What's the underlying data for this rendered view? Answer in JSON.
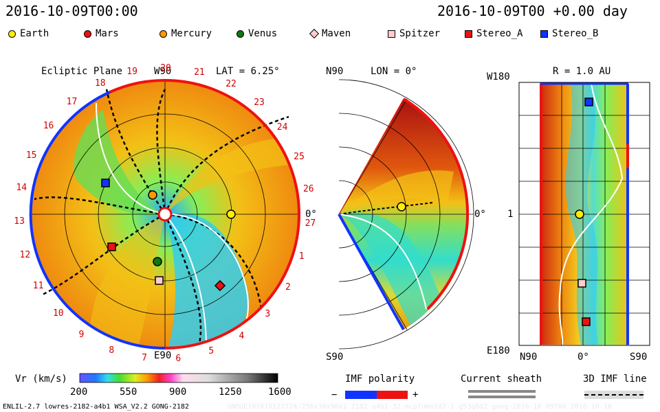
{
  "header": {
    "time_left": "2016-10-09T00:00",
    "time_right": "2016-10-09T00 +0.00 day"
  },
  "legend": [
    {
      "name": "Earth",
      "shape": "circle",
      "color": "#ffee00"
    },
    {
      "name": "Mars",
      "shape": "circle",
      "color": "#ee1111"
    },
    {
      "name": "Mercury",
      "shape": "circle",
      "color": "#ff9900"
    },
    {
      "name": "Venus",
      "shape": "circle",
      "color": "#117711"
    },
    {
      "name": "Maven",
      "shape": "diamond",
      "color": "#ffcccc"
    },
    {
      "name": "Spitzer",
      "shape": "square",
      "color": "#ffcccc"
    },
    {
      "name": "Stereo_A",
      "shape": "square",
      "color": "#ee1111"
    },
    {
      "name": "Stereo_B",
      "shape": "square",
      "color": "#1133ff"
    }
  ],
  "ecliptic": {
    "title": "Ecliptic Plane",
    "lat": "LAT = 6.25°",
    "top_label": "W90",
    "bottom_label": "E90",
    "right_label": "0°",
    "carrington": [
      "19",
      "20",
      "21",
      "22",
      "23",
      "24",
      "25",
      "26",
      "27",
      "1",
      "2",
      "3",
      "4",
      "5",
      "6",
      "7",
      "8",
      "9",
      "10",
      "11",
      "12",
      "13",
      "14",
      "15",
      "16",
      "17",
      "18"
    ]
  },
  "meridional": {
    "title": "LON = 0°",
    "top_label": "N90",
    "bottom_label": "S90",
    "right_label": "0°"
  },
  "cylindrical": {
    "title": "R = 1.0 AU",
    "top_left": "W180",
    "mid_left": "1",
    "bottom_left": "E180",
    "x_left": "N90",
    "x_mid": "0°",
    "x_right": "S90"
  },
  "colorbar": {
    "label": "Vr (km/s)",
    "ticks": [
      "200",
      "550",
      "900",
      "1250",
      "1600"
    ]
  },
  "imf": {
    "label": "IMF polarity",
    "minus": "−",
    "plus": "+"
  },
  "sheath": {
    "label": "Current sheath"
  },
  "imf3d": {
    "label": "3D IMF line"
  },
  "footer": {
    "left": "ENLIL-2.7 lowres-2182-a4b1 WSA_V2.2 GONG-2182",
    "right": "UNQUE101010122724/256x30x90x1 2182-a4b1-32-mcpfumn1d2-1.g53q6d2-gong-2016-10-09T00    2016-10-10"
  },
  "colors": {
    "red_boundary": "#ee1111",
    "blue_boundary": "#1133ff",
    "tick_red": "#dd0000"
  }
}
